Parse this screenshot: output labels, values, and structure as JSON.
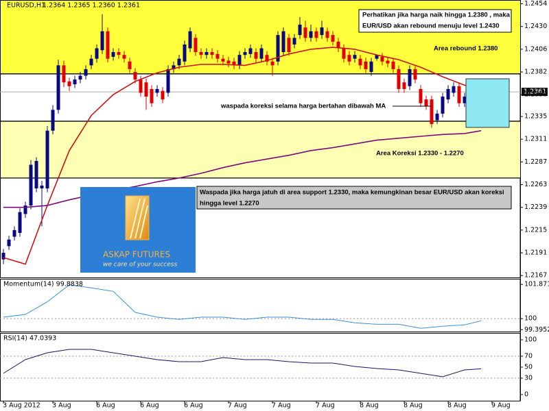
{
  "chart_data": [
    {
      "type": "candlestick",
      "title": "EURUSD,H1",
      "ohlc_text": "1.2364 1.2365 1.2360 1.2361",
      "xlim": [
        -0.625,
        94.125
      ],
      "xticks": [
        {
          "value": 0,
          "label": "3 Aug 2012"
        },
        {
          "value": 9,
          "label": "3 Aug"
        },
        {
          "value": 17,
          "label": "6 Aug"
        },
        {
          "value": 25,
          "label": "6 Aug"
        },
        {
          "value": 33,
          "label": "6 Aug"
        },
        {
          "value": 41,
          "label": "7 Aug"
        },
        {
          "value": 49,
          "label": "7 Aug"
        },
        {
          "value": 57,
          "label": "7 Aug"
        },
        {
          "value": 65,
          "label": "8 Aug"
        },
        {
          "value": 73,
          "label": "8 Aug"
        },
        {
          "value": 81,
          "label": "8 Aug"
        },
        {
          "value": 89,
          "label": "9 Aug"
        }
      ],
      "ylim": [
        1.2165,
        1.2458
      ],
      "yticks": [
        1.2454,
        {
          "value": 1.243,
          "label": "1.2430"
        },
        1.2406,
        1.2382,
        1.2358,
        1.2335,
        1.2311,
        1.2287,
        1.2263,
        1.2239,
        1.2215,
        1.2191,
        1.2167
      ],
      "up_color": "#0a0a80",
      "down_color": "#e00000",
      "x": [
        0,
        1,
        2,
        3,
        4,
        5,
        6,
        7,
        8,
        9,
        10,
        11,
        12,
        13,
        14,
        15,
        16,
        17,
        18,
        19,
        20,
        21,
        22,
        23,
        24,
        25,
        26,
        27,
        28,
        29,
        30,
        31,
        32,
        33,
        34,
        35,
        36,
        37,
        38,
        39,
        40,
        41,
        42,
        43,
        44,
        45,
        46,
        47,
        48,
        49,
        50,
        51,
        52,
        53,
        54,
        55,
        56,
        57,
        58,
        59,
        60,
        61,
        62,
        63,
        64,
        65,
        66,
        67,
        68,
        69,
        70,
        71,
        72,
        73,
        74,
        75,
        76,
        77,
        78,
        79,
        80,
        81,
        82,
        83,
        84,
        85,
        86,
        87
      ],
      "open": [
        1.2184,
        1.2198,
        1.2208,
        1.2212,
        1.2232,
        1.2241,
        1.2259,
        1.2259,
        1.2259,
        1.232,
        1.2342,
        1.2389,
        1.2372,
        1.2369,
        1.2374,
        1.2378,
        1.2389,
        1.2396,
        1.2405,
        1.2425,
        1.2398,
        1.2403,
        1.24,
        1.2393,
        1.2382,
        1.2374,
        1.2371,
        1.2364,
        1.236,
        1.2362,
        1.236,
        1.2385,
        1.2389,
        1.2393,
        1.2407,
        1.2418,
        1.2403,
        1.24,
        1.2403,
        1.2401,
        1.2396,
        1.2394,
        1.2393,
        1.2389,
        1.24,
        1.2401,
        1.2403,
        1.2396,
        1.24,
        1.2393,
        1.2393,
        1.2403,
        1.2418,
        1.2411,
        1.2421,
        1.2429,
        1.2418,
        1.2425,
        1.2421,
        1.2425,
        1.2421,
        1.2414,
        1.2407,
        1.24,
        1.2396,
        1.2396,
        1.2393,
        1.2382,
        1.2396,
        1.2398,
        1.2394,
        1.2393,
        1.2385,
        1.2371,
        1.2367,
        1.2385,
        1.2364,
        1.2353,
        1.2353,
        1.2331,
        1.2338,
        1.2353,
        1.236,
        1.2367,
        1.2349,
        1.2353,
        1.236,
        1.2364
      ],
      "high": [
        1.2195,
        1.2209,
        1.2219,
        1.2238,
        1.2245,
        1.2289,
        1.2292,
        1.2267,
        1.2325,
        1.2347,
        1.2395,
        1.2394,
        1.2376,
        1.2378,
        1.2382,
        1.2389,
        1.24,
        1.2411,
        1.2443,
        1.2429,
        1.2407,
        1.2407,
        1.2404,
        1.2397,
        1.2386,
        1.2378,
        1.2375,
        1.2368,
        1.2368,
        1.2366,
        1.2389,
        1.2393,
        1.24,
        1.2415,
        1.2429,
        1.2422,
        1.2407,
        1.2407,
        1.2407,
        1.2405,
        1.24,
        1.2398,
        1.2397,
        1.2404,
        1.2407,
        1.2411,
        1.2407,
        1.2411,
        1.2404,
        1.2397,
        1.2425,
        1.2429,
        1.2422,
        1.2422,
        1.244,
        1.2436,
        1.2432,
        1.2429,
        1.2436,
        1.2429,
        1.2425,
        1.2418,
        1.2411,
        1.2404,
        1.2404,
        1.24,
        1.2397,
        1.2397,
        1.24,
        1.2402,
        1.2398,
        1.2397,
        1.2389,
        1.2375,
        1.2389,
        1.2389,
        1.2368,
        1.2357,
        1.2357,
        1.2342,
        1.236,
        1.2368,
        1.2371,
        1.2371,
        1.236,
        1.2368,
        1.2371,
        1.2365
      ],
      "low": [
        1.2179,
        1.2194,
        1.2204,
        1.2208,
        1.2228,
        1.2237,
        1.2255,
        1.2219,
        1.2255,
        1.2316,
        1.2338,
        1.2366,
        1.2362,
        1.2365,
        1.237,
        1.2374,
        1.2385,
        1.2392,
        1.2401,
        1.2392,
        1.2394,
        1.2396,
        1.2392,
        1.2381,
        1.237,
        1.2356,
        1.2342,
        1.2345,
        1.2356,
        1.2349,
        1.2356,
        1.2381,
        1.2385,
        1.2389,
        1.2403,
        1.2399,
        1.2396,
        1.2396,
        1.2396,
        1.2392,
        1.2389,
        1.2387,
        1.2385,
        1.2385,
        1.2396,
        1.2397,
        1.2392,
        1.2392,
        1.2389,
        1.2378,
        1.2389,
        1.2399,
        1.2399,
        1.2407,
        1.2417,
        1.2414,
        1.2414,
        1.2414,
        1.2417,
        1.2414,
        1.241,
        1.2403,
        1.2392,
        1.2389,
        1.2392,
        1.2385,
        1.2381,
        1.2378,
        1.2394,
        1.2389,
        1.2387,
        1.2381,
        1.236,
        1.236,
        1.2363,
        1.237,
        1.2345,
        1.2342,
        1.2323,
        1.2327,
        1.2334,
        1.2349,
        1.2356,
        1.2345,
        1.2345,
        1.2349,
        1.2356,
        1.236
      ],
      "close": [
        1.2191,
        1.2205,
        1.2215,
        1.2234,
        1.2241,
        1.2284,
        1.2288,
        1.2262,
        1.232,
        1.2342,
        1.2389,
        1.2371,
        1.2367,
        1.2374,
        1.2378,
        1.2385,
        1.2396,
        1.2407,
        1.2425,
        1.2396,
        1.2403,
        1.24,
        1.2396,
        1.2385,
        1.2374,
        1.236,
        1.2356,
        1.2349,
        1.2364,
        1.2353,
        1.2385,
        1.2389,
        1.2396,
        1.2411,
        1.2425,
        1.2403,
        1.24,
        1.2403,
        1.24,
        1.2396,
        1.2393,
        1.2391,
        1.2389,
        1.24,
        1.2403,
        1.2407,
        1.2396,
        1.2407,
        1.2393,
        1.2389,
        1.2421,
        1.2425,
        1.2403,
        1.2418,
        1.2432,
        1.2418,
        1.2425,
        1.2418,
        1.2429,
        1.2418,
        1.2414,
        1.2407,
        1.2396,
        1.2393,
        1.24,
        1.2389,
        1.2385,
        1.2393,
        1.24,
        1.2393,
        1.2391,
        1.2385,
        1.2364,
        1.2364,
        1.2385,
        1.2374,
        1.2349,
        1.2346,
        1.2327,
        1.2338,
        1.2356,
        1.2364,
        1.2367,
        1.2349,
        1.2356,
        1.2364,
        1.2367,
        1.2361
      ],
      "lines": [
        {
          "color": "#d01010",
          "x": [
            0,
            4,
            8,
            12,
            16,
            20,
            24,
            28,
            32,
            36,
            40,
            44,
            48,
            52,
            56,
            60,
            64,
            68,
            72,
            76,
            80,
            84,
            87
          ],
          "values": [
            1.2186,
            1.2179,
            1.2241,
            1.2299,
            1.2336,
            1.2358,
            1.2372,
            1.2381,
            1.2387,
            1.239,
            1.239,
            1.2389,
            1.2394,
            1.2401,
            1.2406,
            1.2408,
            1.2406,
            1.24,
            1.2395,
            1.2387,
            1.2377,
            1.2368,
            1.2364
          ]
        },
        {
          "color": "#7a0a7a",
          "x": [
            0,
            4,
            8,
            12,
            16,
            20,
            24,
            28,
            32,
            36,
            40,
            44,
            48,
            52,
            56,
            60,
            64,
            68,
            72,
            76,
            80,
            84,
            87
          ],
          "values": [
            1.2239,
            1.2239,
            1.2241,
            1.2247,
            1.2252,
            1.2257,
            1.2261,
            1.2266,
            1.227,
            1.2275,
            1.2281,
            1.2286,
            1.229,
            1.2294,
            1.2299,
            1.2302,
            1.2306,
            1.231,
            1.2312,
            1.2314,
            1.2316,
            1.2317,
            1.232
          ]
        }
      ],
      "current_price": 1.2361,
      "levels": [
        1.238,
        1.233,
        1.227
      ],
      "zone_colors": [
        "#ffff3c",
        "#ffffb4"
      ],
      "annotations": {
        "rebound_note": [
          "Perhatikan jika harga naik hingga 1.2380 , maka",
          "EUR/USD akan rebound menuju level 1.2430"
        ],
        "rebound_area": "Area rebound 1.2380",
        "ma_note": "waspada koreksi selama harga bertahan dibawah MA",
        "correction_area": "Area Koreksi 1.2330 - 1.2270",
        "support_note": [
          "Waspada jika harga jatuh di area support 1.2330, maka kemungkinan besar EUR/USD akan koreksi",
          "hingga level 1.2270"
        ]
      }
    },
    {
      "type": "line",
      "title": "Momentum(14) 99.8838",
      "color": "#3a8fd8",
      "ylim": [
        99.33,
        102.14
      ],
      "yticks": [
        101.8712,
        100,
        99.3952
      ],
      "reference_lines": [
        100
      ],
      "x": [
        0,
        4,
        8,
        12,
        16,
        20,
        24,
        28,
        32,
        36,
        40,
        44,
        48,
        52,
        56,
        60,
        64,
        68,
        72,
        76,
        80,
        84,
        87
      ],
      "values": [
        100.08,
        100.23,
        100.92,
        101.85,
        101.68,
        101.49,
        100.34,
        100.08,
        99.96,
        100.08,
        100.08,
        99.96,
        100.08,
        100.08,
        99.96,
        99.96,
        99.77,
        99.69,
        99.69,
        99.47,
        99.58,
        99.66,
        99.88
      ]
    },
    {
      "type": "line",
      "title": "RSI(14) 47.0393",
      "color": "#141466",
      "ylim": [
        -5,
        105
      ],
      "yticks": [
        100,
        70,
        50,
        30,
        0
      ],
      "reference_lines": [
        70,
        30
      ],
      "x": [
        0,
        4,
        8,
        12,
        16,
        20,
        24,
        28,
        32,
        36,
        40,
        44,
        48,
        52,
        56,
        60,
        64,
        68,
        72,
        76,
        80,
        84,
        87
      ],
      "values": [
        38.8,
        63.8,
        76.3,
        82.5,
        82.5,
        76.3,
        70,
        63.8,
        60,
        60,
        67.5,
        63.8,
        63.8,
        60,
        57.5,
        57.5,
        51.3,
        47.5,
        45,
        38.8,
        32.5,
        45,
        47.04
      ]
    }
  ],
  "logo": {
    "name": "ASKAP FUTURES",
    "tagline": "we care of your success"
  }
}
